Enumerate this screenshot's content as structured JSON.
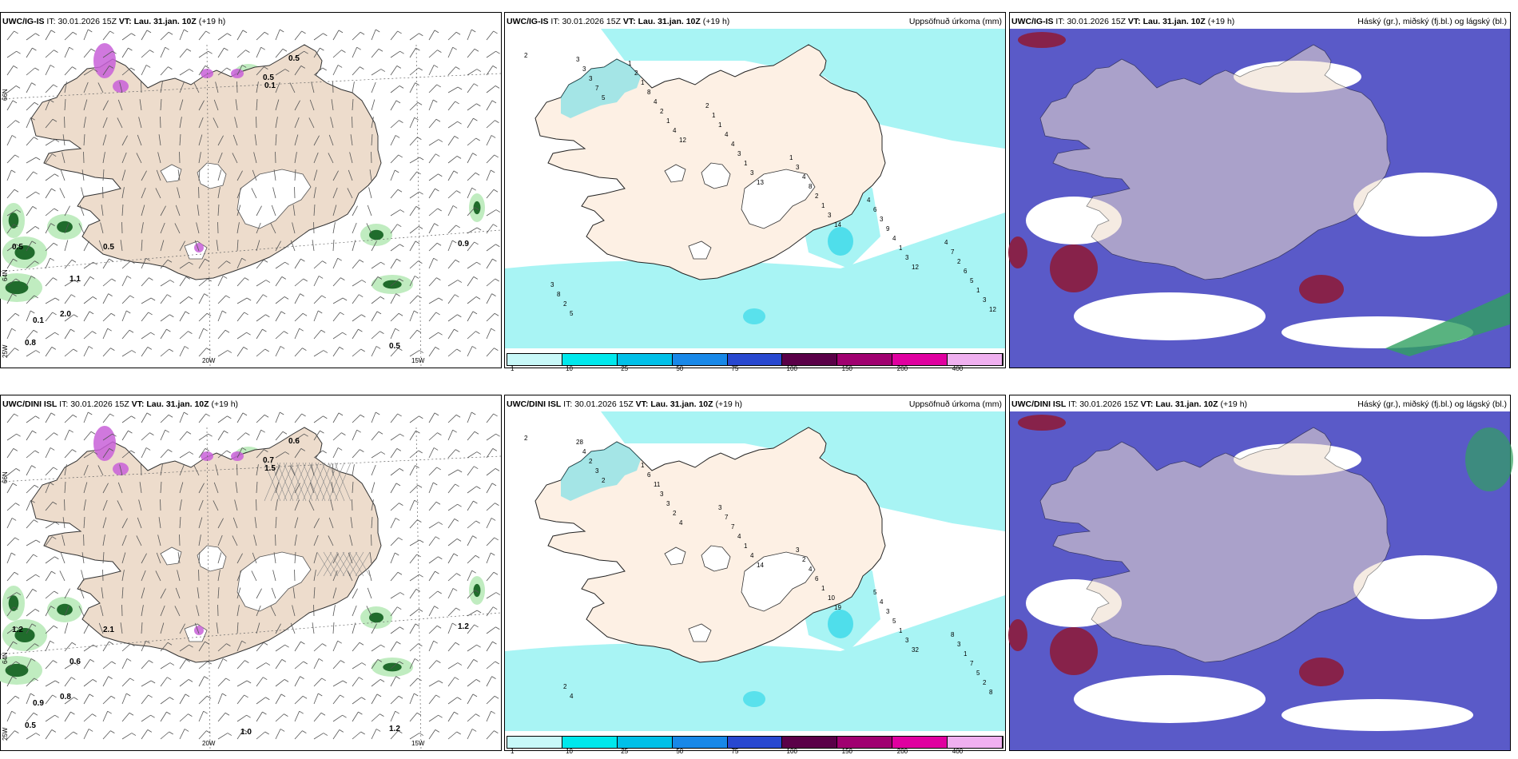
{
  "issue_time_label": "IT:",
  "issue_time": "30.01.2026 15Z",
  "valid_time_label": "VT:",
  "valid_time": "Lau. 31.jan. 10Z",
  "lead": "(+19 h)",
  "rows": [
    {
      "model": "UWC/IG-IS"
    },
    {
      "model": "UWC/DINI ISL"
    }
  ],
  "precip_title": "Uppsöfnuð úrkoma (mm)",
  "cloud_title": "Háský (gr.), miðský (fj.bl.) og lágský (bl.)",
  "axis_labels": {
    "w20": "20W",
    "w15": "15W",
    "w25": "25W",
    "n66": "66N",
    "n64": "64N"
  },
  "legend": {
    "ticks": [
      "1",
      "10",
      "25",
      "50",
      "75",
      "100",
      "150",
      "200",
      "400"
    ],
    "colors": [
      "#c8f8f8",
      "#00e8ec",
      "#00c0e8",
      "#1888e8",
      "#2848d0",
      "#5a0048",
      "#a00070",
      "#e000a0",
      "#f0b0f0"
    ]
  },
  "colors": {
    "land": "#eddccc",
    "land_precip_map": "#fdf0e4",
    "sea": "#ffffff",
    "glacier": "#ffffff",
    "precip_light": "#a8f4f4",
    "precip_cyan": "#38d8e8",
    "cloud_low": "#5a5ac8",
    "cloud_high": "#8c1c3c",
    "cloud_mid_green": "#30a060",
    "wet_green_light": "#c0ecc0",
    "wet_green_dark": "#206c2c",
    "snow_magenta": "#c860d8"
  },
  "top_wind_labels": [
    "0.5",
    "0.5",
    "0.1",
    "0.5",
    "0.5",
    "0.9",
    "1.1",
    "2.0",
    "0.1",
    "0.8",
    "0.5"
  ],
  "bottom_wind_labels": [
    "0.6",
    "0.7",
    "1.5",
    "1.2",
    "2.1",
    "1.2",
    "0.6",
    "0.8",
    "0.9",
    "0.5",
    "1.2",
    "1.0"
  ],
  "top_precip_labels": [
    "2",
    "5",
    "12",
    "13",
    "14",
    "12",
    "12",
    "7",
    "4",
    "3",
    "3",
    "3",
    "3",
    "3",
    "1",
    "1",
    "1",
    "1",
    "1",
    "3",
    "2",
    "3",
    "2",
    "4",
    "5",
    "3",
    "4",
    "4",
    "8",
    "9",
    "6",
    "5",
    "8",
    "4",
    "4",
    "3",
    "2",
    "2",
    "1",
    "1",
    "3",
    "6",
    "7",
    "8",
    "2",
    "1",
    "1",
    "4",
    "4",
    "3",
    "1",
    "2"
  ],
  "bottom_precip_labels": [
    "2",
    "2",
    "4",
    "14",
    "19",
    "32",
    "8",
    "3",
    "2",
    "4",
    "10",
    "3",
    "2",
    "2",
    "3",
    "1",
    "1",
    "1",
    "5",
    "4",
    "3",
    "4",
    "6",
    "5",
    "7",
    "28",
    "11",
    "7",
    "4",
    "3",
    "1",
    "4",
    "6",
    "7",
    "2",
    "4",
    "3",
    "2",
    "1",
    "3",
    "3",
    "5",
    "8"
  ]
}
